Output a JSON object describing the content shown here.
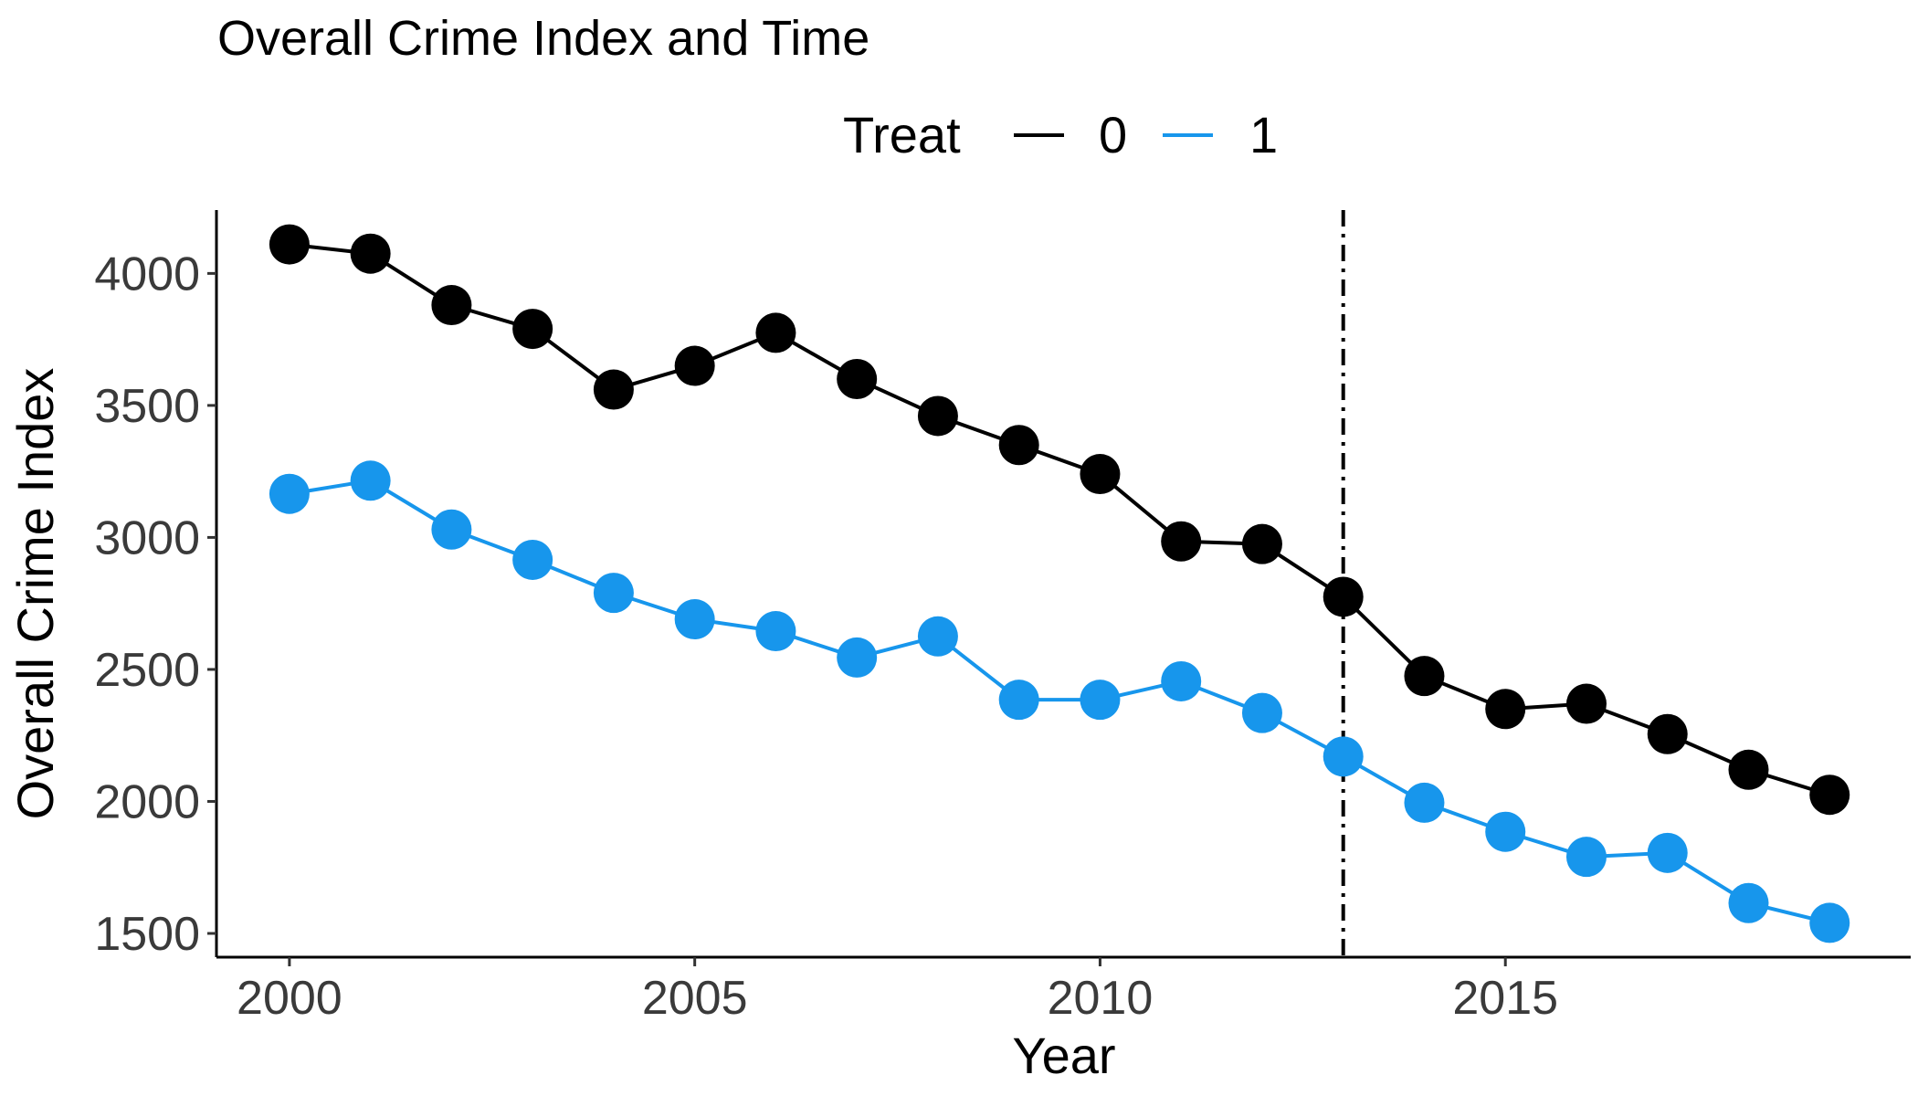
{
  "chart_data": {
    "type": "line",
    "title": "Overall Crime Index and Time",
    "xlabel": "Year",
    "ylabel": "Overall Crime Index",
    "legend": {
      "title": "Treat",
      "placement": "top"
    },
    "x": [
      2000,
      2001,
      2002,
      2003,
      2004,
      2005,
      2006,
      2007,
      2008,
      2009,
      2010,
      2011,
      2012,
      2013,
      2014,
      2015,
      2016,
      2017,
      2018,
      2019
    ],
    "series": [
      {
        "name": "0",
        "color": "#000000",
        "values": [
          4110,
          4075,
          3880,
          3790,
          3560,
          3650,
          3775,
          3600,
          3460,
          3350,
          3240,
          2985,
          2975,
          2775,
          2475,
          2350,
          2370,
          2255,
          2120,
          2025
        ]
      },
      {
        "name": "1",
        "color": "#1796EC",
        "values": [
          3165,
          3215,
          3030,
          2915,
          2790,
          2690,
          2645,
          2545,
          2625,
          2385,
          2385,
          2455,
          2335,
          2170,
          1995,
          1885,
          1790,
          1805,
          1615,
          1540
        ]
      }
    ],
    "xlim": [
      1999.1,
      2020
    ],
    "ylim": [
      1410,
      4240
    ],
    "x_ticks": [
      2000,
      2005,
      2010,
      2015
    ],
    "y_ticks": [
      1500,
      2000,
      2500,
      3000,
      3500,
      4000
    ],
    "x_tick_labels": [
      "2000",
      "2005",
      "2010",
      "2015"
    ],
    "y_tick_labels": [
      "1500",
      "2000",
      "2500",
      "3000",
      "3500",
      "4000"
    ],
    "vline": {
      "x": 2013,
      "style": "dashdot",
      "color": "#000000"
    },
    "grid": false
  }
}
